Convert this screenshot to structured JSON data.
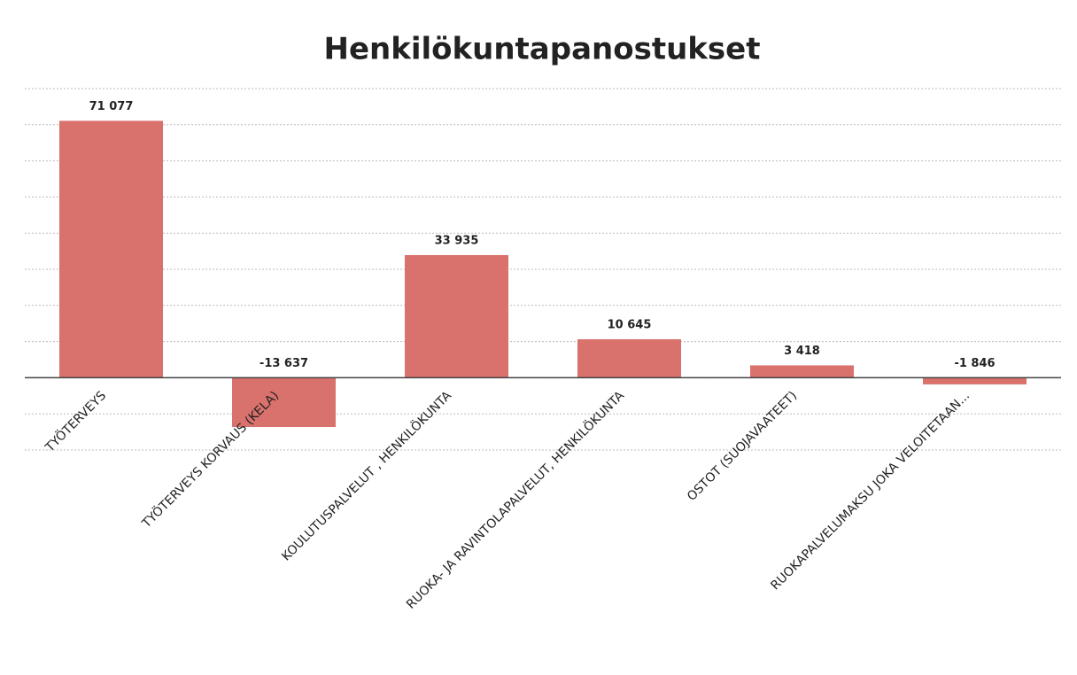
{
  "chart_data": {
    "type": "bar",
    "title": "Henkilökuntapanostukset",
    "categories": [
      "TYÖTERVEYS",
      "TYÖTERVEYS KORVAUS (KELA)",
      "KOULUTUSPALVELUT , HENKILÖKUNTA",
      "RUOKA- JA RAVINTOLAPALVELUT, HENKILÖKUNTA",
      "OSTOT (SUOJAVAATEET)",
      "RUOKAPALVELUMAKSU JOKA VELOITETAAN..."
    ],
    "values": [
      71077,
      -13637,
      33935,
      10645,
      3418,
      -1846
    ],
    "value_labels": [
      "71 077",
      "-13 637",
      "33 935",
      "10 645",
      "3 418",
      "-1 846"
    ],
    "color": "#d9716c",
    "ylim": [
      -20000,
      80000
    ],
    "yticks": [
      -20000,
      -10000,
      0,
      10000,
      20000,
      30000,
      40000,
      50000,
      60000,
      70000,
      80000
    ],
    "grid": true
  }
}
